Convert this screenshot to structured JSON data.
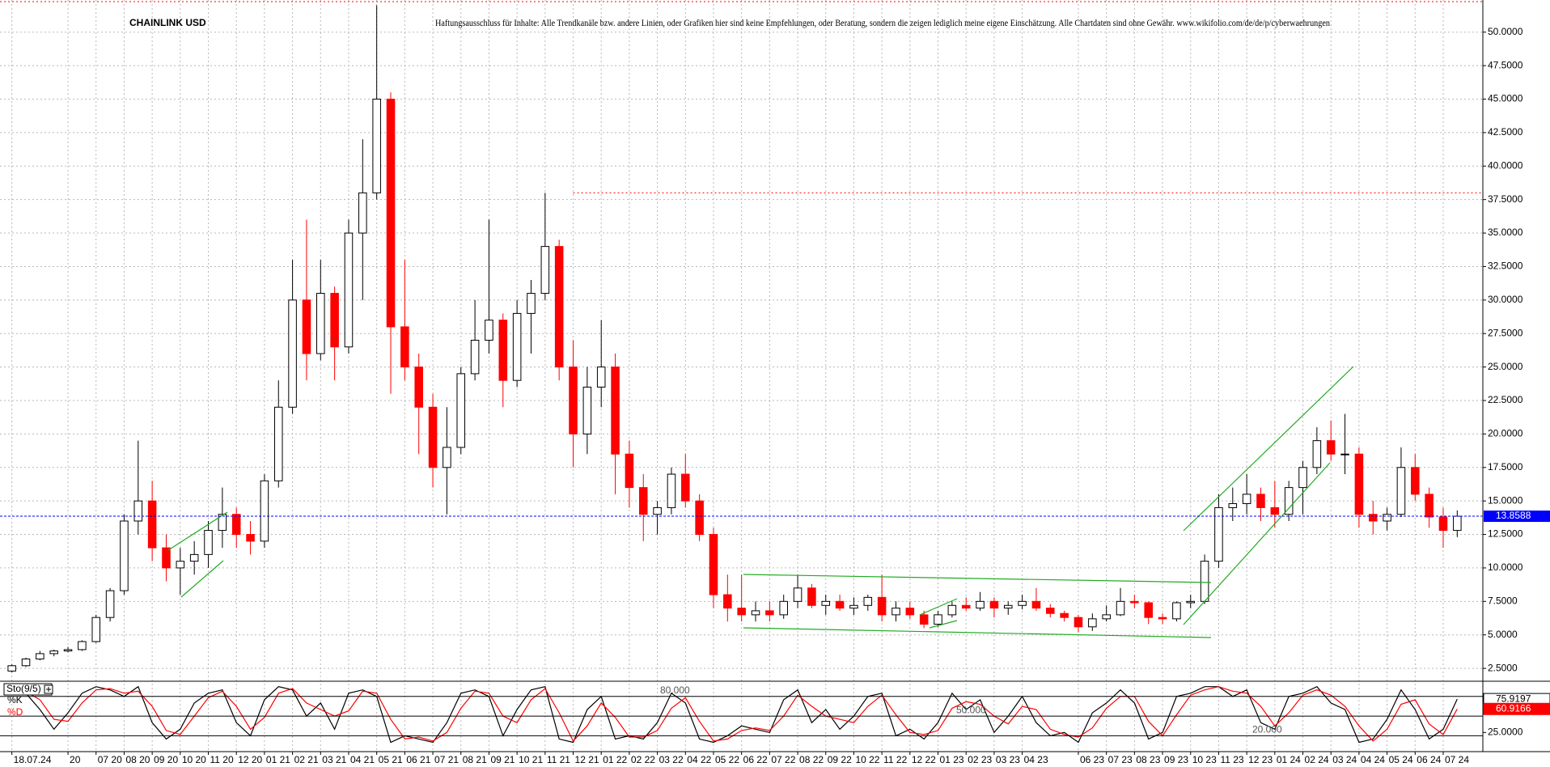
{
  "chart_data": [
    {
      "type": "candlestick",
      "title": "CHAINLINK USD",
      "subtitle": "Haftungsausschluss für Inhalte: Alle Trendkanäle bzw. andere Linien, oder Grafiken hier sind keine Empfehlungen, oder Beratung, sondern die zeigen lediglich meine eigene Einschätzung. Alle Chartdaten sind ohne Gewähr. www.wikifolio.com/de/de/p/cyberwaehrungen",
      "categories": [
        "18.07.24",
        null,
        null,
        null,
        "20",
        null,
        "07 20",
        null,
        "08 20",
        null,
        "09 20",
        null,
        "10 20",
        null,
        "11 20",
        null,
        "12 20",
        null,
        "01 21",
        null,
        "02 21",
        null,
        "03 21",
        null,
        "04 21",
        null,
        "05 21",
        null,
        "06 21",
        null,
        "07 21",
        null,
        "08 21",
        null,
        "09 21",
        null,
        "10 21",
        null,
        "11 21",
        null,
        "12 21",
        null,
        "01 22",
        null,
        "02 22",
        null,
        "03 22",
        null,
        "04 22",
        null,
        "05 22",
        null,
        "06 22",
        null,
        "07 22",
        null,
        "08 22",
        null,
        "09 22",
        null,
        "10 22",
        null,
        "11 22",
        null,
        "12 22",
        null,
        "01 23",
        null,
        "02 23",
        null,
        "03 23",
        null,
        "04 23",
        null,
        null,
        null,
        "06 23",
        null,
        "07 23",
        null,
        "08 23",
        null,
        "09 23",
        null,
        "10 23",
        null,
        "11 23",
        null,
        "12 23",
        null,
        "01 24",
        null,
        "02 24",
        null,
        "03 24",
        null,
        "04 24",
        null,
        "05 24",
        null,
        "06 24",
        null,
        "07 24",
        null
      ],
      "open": [
        2.3,
        2.7,
        3.2,
        3.6,
        3.8,
        3.9,
        4.5,
        6.3,
        8.3,
        13.5,
        15.0,
        11.5,
        10.0,
        10.5,
        11.0,
        12.8,
        14.0,
        12.5,
        12.0,
        16.5,
        22.0,
        30.0,
        26.0,
        30.5,
        26.5,
        35.0,
        38.0,
        45.0,
        28.0,
        25.0,
        22.0,
        17.5,
        19.0,
        24.5,
        27.0,
        28.5,
        24.0,
        29.0,
        30.5,
        34.0,
        25.0,
        20.0,
        23.5,
        25.0,
        18.5,
        16.0,
        14.0,
        14.5,
        17.0,
        15.0,
        12.5,
        8.0,
        7.0,
        6.5,
        6.8,
        6.5,
        7.5,
        8.5,
        7.2,
        7.5,
        7.0,
        7.2,
        7.8,
        6.5,
        7.0,
        6.5,
        5.8,
        6.5,
        7.2,
        7.0,
        7.5,
        7.0,
        7.2,
        7.5,
        7.0,
        6.6,
        6.3,
        5.6,
        6.2,
        6.5,
        7.5,
        7.4,
        6.3,
        6.2,
        7.4,
        7.5,
        10.5,
        14.5,
        14.8,
        15.5,
        14.5,
        14.0,
        16.0,
        17.5,
        19.5,
        18.5,
        18.5,
        14.0,
        13.5,
        14.0,
        17.5,
        15.5,
        13.8,
        12.8
      ],
      "high": [
        2.8,
        3.3,
        3.8,
        3.9,
        4.1,
        4.6,
        6.5,
        8.5,
        14.0,
        19.5,
        16.5,
        12.5,
        11.5,
        12.0,
        13.5,
        16.0,
        14.5,
        13.5,
        17.0,
        24.0,
        33.0,
        36.0,
        33.0,
        31.0,
        36.0,
        42.0,
        52.0,
        45.5,
        33.0,
        26.0,
        23.0,
        22.0,
        25.0,
        30.0,
        36.0,
        29.0,
        30.0,
        31.5,
        38.0,
        34.5,
        27.0,
        25.0,
        28.5,
        26.0,
        19.5,
        17.0,
        15.0,
        17.5,
        18.5,
        15.5,
        13.0,
        9.5,
        9.5,
        7.5,
        7.5,
        8.0,
        9.5,
        8.8,
        8.0,
        8.0,
        7.8,
        8.0,
        9.5,
        7.5,
        7.5,
        6.8,
        6.8,
        7.5,
        7.8,
        8.2,
        7.8,
        7.5,
        8.0,
        8.5,
        7.3,
        6.8,
        6.5,
        6.6,
        7.2,
        8.5,
        8.0,
        7.5,
        6.6,
        7.5,
        8.0,
        11.0,
        15.5,
        16.0,
        17.0,
        16.0,
        16.5,
        16.5,
        18.0,
        20.5,
        21.0,
        21.5,
        19.0,
        15.0,
        14.5,
        19.0,
        18.5,
        16.0,
        14.5,
        14.3
      ],
      "low": [
        2.2,
        2.6,
        3.1,
        3.4,
        3.7,
        3.8,
        4.4,
        6.0,
        8.0,
        12.5,
        10.5,
        9.0,
        8.0,
        9.5,
        10.0,
        11.5,
        11.5,
        11.0,
        11.5,
        16.0,
        21.5,
        24.0,
        25.5,
        24.0,
        26.0,
        30.0,
        37.5,
        23.0,
        24.0,
        18.5,
        16.0,
        14.0,
        18.5,
        24.0,
        26.0,
        22.0,
        23.5,
        26.0,
        30.0,
        24.0,
        17.5,
        18.5,
        22.0,
        15.5,
        14.5,
        12.0,
        12.5,
        14.0,
        14.5,
        12.0,
        7.0,
        6.0,
        6.0,
        6.0,
        6.0,
        6.2,
        7.0,
        7.0,
        6.5,
        6.8,
        6.5,
        6.8,
        6.0,
        6.0,
        6.2,
        5.5,
        5.6,
        6.3,
        6.8,
        6.8,
        6.3,
        6.5,
        6.9,
        6.8,
        6.3,
        6.0,
        5.2,
        5.3,
        6.0,
        6.4,
        7.0,
        5.8,
        5.8,
        6.0,
        7.0,
        7.3,
        10.0,
        13.5,
        14.0,
        13.5,
        13.0,
        13.5,
        14.0,
        17.0,
        18.0,
        17.0,
        13.0,
        12.5,
        12.8,
        13.8,
        15.0,
        13.0,
        11.5,
        12.3
      ],
      "close": [
        2.7,
        3.2,
        3.6,
        3.8,
        3.9,
        4.5,
        6.3,
        8.3,
        13.5,
        15.0,
        11.5,
        10.0,
        10.5,
        11.0,
        12.8,
        14.0,
        12.5,
        12.0,
        16.5,
        22.0,
        30.0,
        26.0,
        30.5,
        26.5,
        35.0,
        38.0,
        45.0,
        28.0,
        25.0,
        22.0,
        17.5,
        19.0,
        24.5,
        27.0,
        28.5,
        24.0,
        29.0,
        30.5,
        34.0,
        25.0,
        20.0,
        23.5,
        25.0,
        18.5,
        16.0,
        14.0,
        14.5,
        17.0,
        15.0,
        12.5,
        8.0,
        7.0,
        6.5,
        6.8,
        6.5,
        7.5,
        8.5,
        7.2,
        7.5,
        7.0,
        7.2,
        7.8,
        6.5,
        7.0,
        6.5,
        5.8,
        6.5,
        7.2,
        7.0,
        7.5,
        7.0,
        7.2,
        7.5,
        7.0,
        6.6,
        6.3,
        5.6,
        6.2,
        6.5,
        7.5,
        7.4,
        6.3,
        6.2,
        7.4,
        7.5,
        10.5,
        14.5,
        14.8,
        15.5,
        14.5,
        14.0,
        16.0,
        17.5,
        19.5,
        18.5,
        18.5,
        14.0,
        13.5,
        14.0,
        17.5,
        15.5,
        13.8,
        12.8,
        13.8588
      ],
      "ylim": [
        1.6,
        52.4
      ],
      "yticks": [
        {
          "value": 2.5,
          "label": "2.5000"
        },
        {
          "value": 5,
          "label": "5.0000"
        },
        {
          "value": 7.5,
          "label": "7.5000"
        },
        {
          "value": 10,
          "label": "10.0000"
        },
        {
          "value": 12.5,
          "label": "12.5000"
        },
        {
          "value": 15,
          "label": "15.0000"
        },
        {
          "value": 17.5,
          "label": "17.5000"
        },
        {
          "value": 20,
          "label": "20.0000"
        },
        {
          "value": 22.5,
          "label": "22.5000"
        },
        {
          "value": 25,
          "label": "25.0000"
        },
        {
          "value": 27.5,
          "label": "27.5000"
        },
        {
          "value": 30,
          "label": "30.0000"
        },
        {
          "value": 32.5,
          "label": "32.5000"
        },
        {
          "value": 35,
          "label": "35.0000"
        },
        {
          "value": 37.5,
          "label": "37.5000"
        },
        {
          "value": 40,
          "label": "40.0000"
        },
        {
          "value": 42.5,
          "label": "42.5000"
        },
        {
          "value": 45,
          "label": "45.0000"
        },
        {
          "value": 47.5,
          "label": "47.5000"
        },
        {
          "value": 50,
          "label": "50.0000"
        }
      ],
      "grid": true,
      "up_color": "#000000",
      "down_color": "#ff0000",
      "resistance": 38,
      "resistance_color": "#ff0000",
      "last_color": "#0000ff"
    },
    {
      "type": "line",
      "title": "Sto(9/5)",
      "series": [
        {
          "name": "%K",
          "color": "#000000",
          "values": [
            90,
            85,
            60,
            30,
            55,
            85,
            95,
            90,
            80,
            95,
            40,
            15,
            30,
            70,
            85,
            90,
            40,
            20,
            75,
            95,
            90,
            50,
            70,
            30,
            85,
            90,
            80,
            10,
            20,
            15,
            10,
            40,
            85,
            90,
            80,
            20,
            60,
            90,
            95,
            15,
            10,
            60,
            80,
            15,
            20,
            15,
            40,
            85,
            70,
            15,
            10,
            20,
            35,
            30,
            25,
            75,
            90,
            40,
            60,
            30,
            50,
            80,
            85,
            20,
            30,
            15,
            40,
            85,
            60,
            75,
            25,
            50,
            80,
            40,
            20,
            25,
            10,
            55,
            70,
            90,
            70,
            15,
            25,
            80,
            85,
            95,
            95,
            80,
            90,
            40,
            30,
            80,
            85,
            95,
            70,
            60,
            10,
            15,
            45,
            90,
            60,
            15,
            30,
            75.9197
          ]
        },
        {
          "name": "%D",
          "color": "#ff0000",
          "values": [
            85,
            87,
            75,
            45,
            42,
            70,
            90,
            92,
            85,
            88,
            65,
            28,
            22,
            50,
            78,
            88,
            65,
            30,
            48,
            85,
            92,
            70,
            60,
            50,
            58,
            88,
            85,
            45,
            15,
            18,
            12,
            25,
            62,
            88,
            85,
            50,
            40,
            75,
            92,
            55,
            12,
            35,
            70,
            48,
            18,
            18,
            28,
            62,
            78,
            42,
            12,
            15,
            28,
            32,
            28,
            50,
            82,
            65,
            50,
            45,
            40,
            65,
            82,
            52,
            25,
            22,
            28,
            62,
            72,
            68,
            50,
            38,
            65,
            60,
            30,
            22,
            18,
            32,
            62,
            80,
            80,
            42,
            20,
            52,
            82,
            90,
            95,
            88,
            85,
            65,
            35,
            55,
            82,
            90,
            82,
            65,
            35,
            12,
            30,
            68,
            75,
            38,
            22,
            60.9166
          ]
        }
      ],
      "ylim": [
        -3,
        102
      ],
      "yticks": [
        {
          "value": 25,
          "label": "25.0000"
        }
      ],
      "levels": [
        {
          "value": 80,
          "label": "80.000"
        },
        {
          "value": 50,
          "label": "50.000"
        },
        {
          "value": 20,
          "label": "20.000"
        }
      ]
    }
  ]
}
